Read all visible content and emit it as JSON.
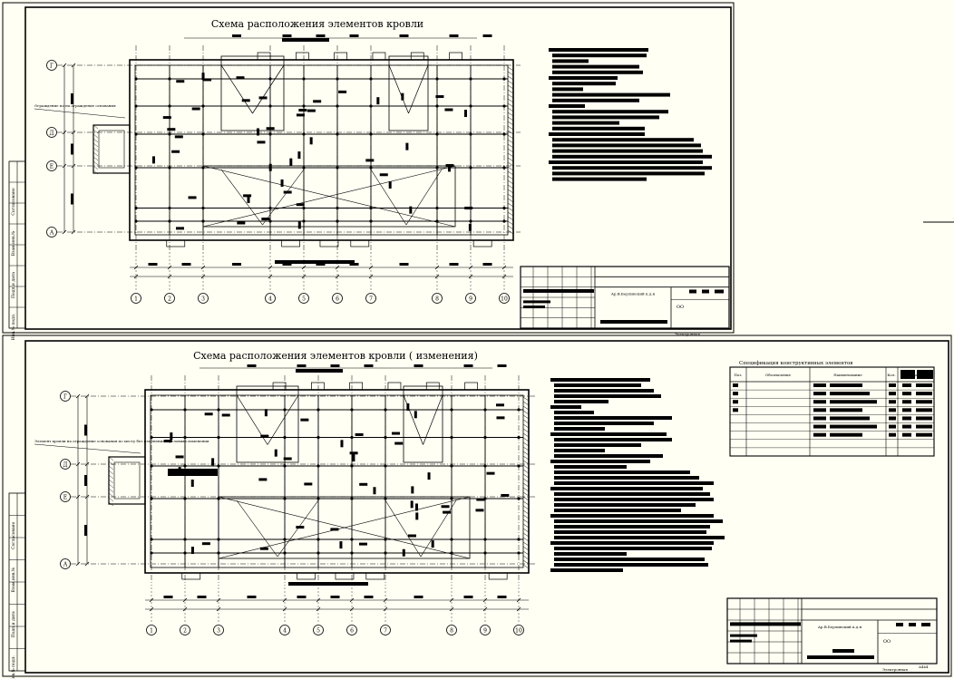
{
  "colors": {
    "paper": "#fffff4",
    "ink": "#000000"
  },
  "sheets": [
    {
      "title": "Схема  расположения элементов кровли",
      "axes_bottom": [
        "1",
        "2",
        "3",
        "4",
        "5",
        "6",
        "7",
        "8",
        "9",
        "10"
      ],
      "axes_left": [
        "Г",
        "Д",
        "Е",
        "А"
      ],
      "callout": "Ограждение по на ограждение основания",
      "stamp_caption": "Ар.В.Берлинский к.д.н",
      "stamp_code": "ОО",
      "format_label": "Электронная"
    },
    {
      "title": "Схема  расположения элементов кровли ( изменения)",
      "axes_bottom": [
        "1",
        "2",
        "3",
        "4",
        "5",
        "6",
        "7",
        "8",
        "9",
        "10"
      ],
      "axes_left": [
        "Г",
        "Д",
        "Е",
        "А"
      ],
      "callout": "Элемент кровли на ограждение основания по месту без изменения в условиях изменения",
      "stamp_caption": "Ар.В.Берлинский к.д.н",
      "stamp_code": "ОО",
      "format_label": "Электронная",
      "format_size": "А4х4",
      "spec_title": "Спецификация конструктивных элементов",
      "spec_headers": [
        "Поз.",
        "Обозначение",
        "Наименование",
        "Кол.",
        "Масса"
      ]
    }
  ],
  "side_labels": [
    "Согласовано",
    "Взам.инв.№",
    "Подп.и дата",
    "Инв.№ подл."
  ]
}
